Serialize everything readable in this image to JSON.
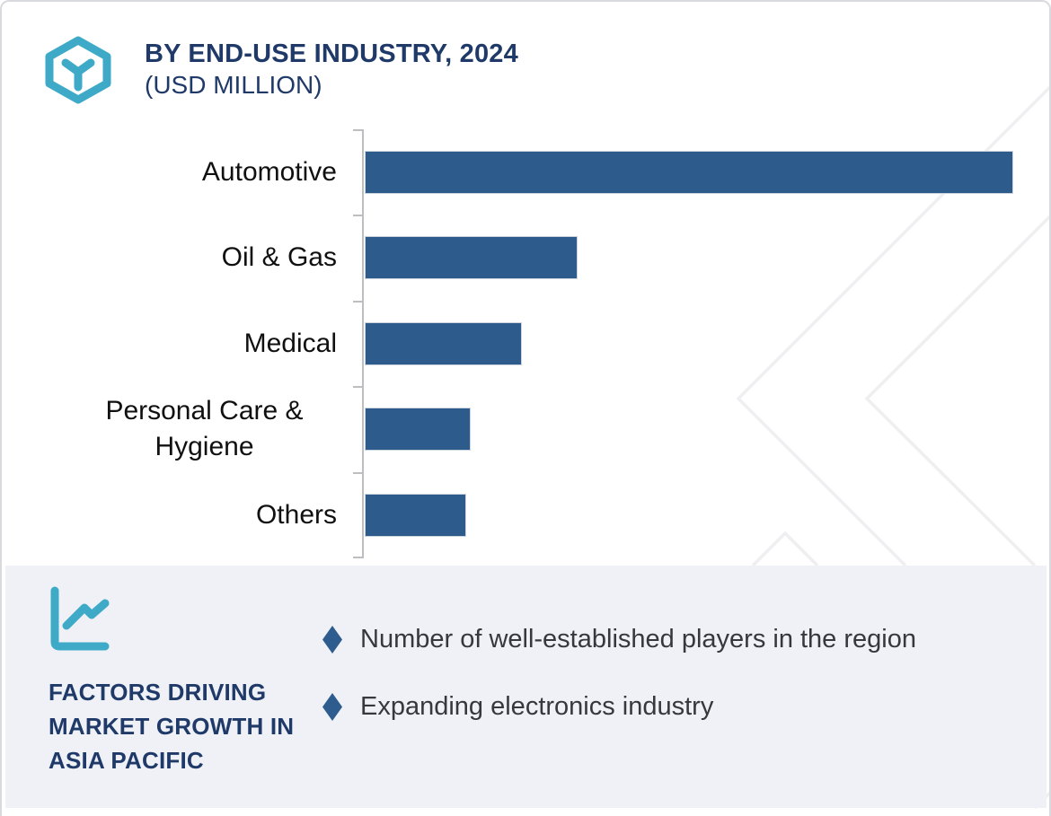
{
  "header": {
    "title": "BY END-USE INDUSTRY, 2024",
    "subtitle": "(USD MILLION)",
    "icon": "hexagon-y-icon"
  },
  "chart_data": {
    "type": "bar",
    "orientation": "horizontal",
    "title": "BY END-USE INDUSTRY, 2024 (USD MILLION)",
    "categories": [
      "Automotive",
      "Oil & Gas",
      "Medical",
      "Personal Care & Hygiene",
      "Others"
    ],
    "values_pct_of_max": [
      100,
      32.8,
      24.2,
      16.3,
      15.6
    ],
    "value_labels_shown": false,
    "axis_numbers_shown": false,
    "grid": false,
    "bar_color": "#2d5c8c",
    "axis_color": "#bcbec1",
    "label_color": "#101010"
  },
  "panel": {
    "icon": "line-chart-icon",
    "heading": "FACTORS DRIVING MARKET GROWTH IN ASIA PACIFIC",
    "bullets": [
      "Number of well-established players in the region",
      "Expanding electronics industry"
    ],
    "background": "#eff1f6",
    "bullet_marker": "diamond",
    "bullet_marker_color": "#2e5c8e"
  },
  "colors": {
    "accent_teal": "#3faac8",
    "navy": "#1f3a68",
    "bar_blue": "#2d5c8c",
    "panel_bg": "#eff1f6",
    "watermark_gray": "#efeff1",
    "border_gray": "#d9dade"
  }
}
